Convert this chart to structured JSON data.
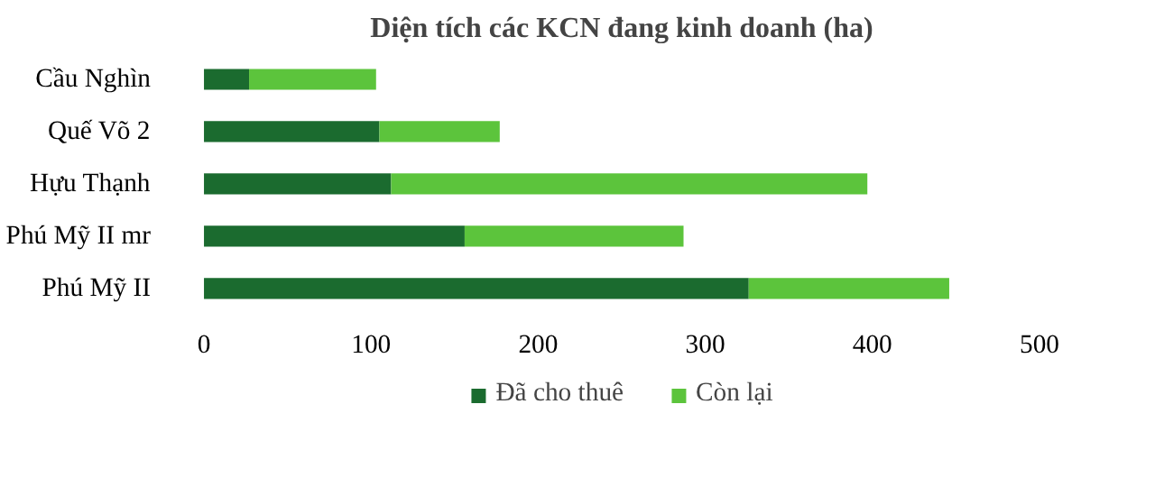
{
  "chart_data": {
    "type": "bar",
    "orientation": "horizontal",
    "stacked": true,
    "title": "Diện tích các KCN đang kinh doanh (ha)",
    "categories": [
      "Cầu Nghìn",
      "Quế Võ 2",
      "Hựu Thạnh",
      "Phú Mỹ II mr",
      "Phú Mỹ II"
    ],
    "series": [
      {
        "name": "Đã cho thuê",
        "color": "#1b6b2f",
        "values": [
          27,
          105,
          112,
          156,
          326
        ]
      },
      {
        "name": "Còn lại",
        "color": "#5cc43c",
        "values": [
          76,
          72,
          285,
          131,
          120
        ]
      }
    ],
    "xlim": [
      0,
      500
    ],
    "xticks": [
      0,
      100,
      200,
      300,
      400,
      500
    ],
    "grid": false,
    "legend": "bottom"
  }
}
